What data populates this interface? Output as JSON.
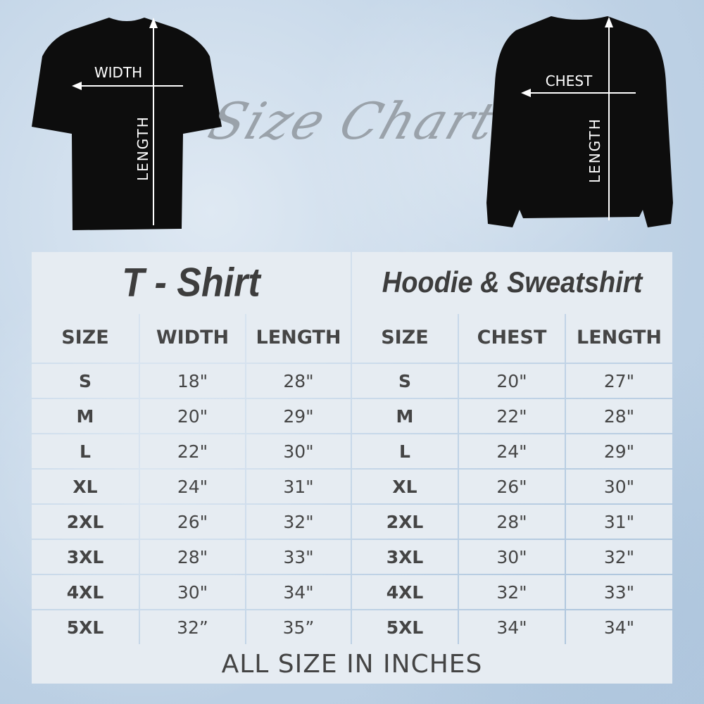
{
  "heading": "Size Chart",
  "tshirt": {
    "title": "T - Shirt",
    "width_label": "WIDTH",
    "length_label": "LENGTH",
    "headers": [
      "SIZE",
      "WIDTH",
      "LENGTH"
    ],
    "rows": [
      [
        "S",
        "18\"",
        "28\""
      ],
      [
        "M",
        "20\"",
        "29\""
      ],
      [
        "L",
        "22\"",
        "30\""
      ],
      [
        "XL",
        "24\"",
        "31\""
      ],
      [
        "2XL",
        "26\"",
        "32\""
      ],
      [
        "3XL",
        "28\"",
        "33\""
      ],
      [
        "4XL",
        "30\"",
        "34\""
      ],
      [
        "5XL",
        "32”",
        "35”"
      ]
    ]
  },
  "hoodie": {
    "title": "Hoodie & Sweatshirt",
    "chest_label": "CHEST",
    "length_label": "LENGTH",
    "headers": [
      "SIZE",
      "CHEST",
      "LENGTH"
    ],
    "rows": [
      [
        "S",
        "20\"",
        "27\""
      ],
      [
        "M",
        "22\"",
        "28\""
      ],
      [
        "L",
        "24\"",
        "29\""
      ],
      [
        "XL",
        "26\"",
        "30\""
      ],
      [
        "2XL",
        "28\"",
        "31\""
      ],
      [
        "3XL",
        "30\"",
        "32\""
      ],
      [
        "4XL",
        "32\"",
        "33\""
      ],
      [
        "5XL",
        "34\"",
        "34\""
      ]
    ]
  },
  "footer": "ALL SIZE IN INCHES",
  "colors": {
    "cell": "#e6ecf2",
    "border": "#c8d6e4",
    "text": "#444444"
  }
}
